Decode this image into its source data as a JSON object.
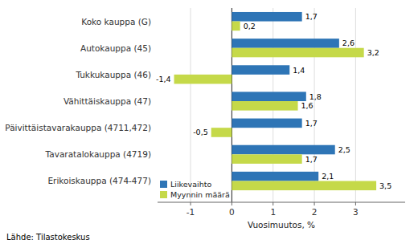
{
  "chart_data": {
    "type": "bar",
    "orientation": "horizontal",
    "categories": [
      "Erikoiskauppa (474-477)",
      "Tavaratalokauppa (4719)",
      "Päivittäistavarakauppa (4711,472)",
      "Vähittäiskauppa (47)",
      "Tukkukauppa (46)",
      "Autokauppa (45)",
      "Koko kauppa (G)"
    ],
    "series": [
      {
        "name": "Liikevaihto",
        "color": "#2E75B6",
        "values": [
          2.1,
          2.5,
          1.7,
          1.8,
          1.4,
          2.6,
          1.7
        ],
        "value_labels": [
          "2,1",
          "2,5",
          "1,7",
          "1,8",
          "1,4",
          "2,6",
          "1,7"
        ]
      },
      {
        "name": "Myynnin määrä",
        "color": "#C5D949",
        "values": [
          3.5,
          1.7,
          -0.5,
          1.6,
          -1.4,
          3.2,
          0.2
        ],
        "value_labels": [
          "3,5",
          "1,7",
          "-0,5",
          "1,6",
          "-1,4",
          "3,2",
          "0,2"
        ]
      }
    ],
    "x_label": "Vuosimuutos, %",
    "xlim": [
      -1.8,
      4.2
    ],
    "xticks": [
      -1,
      0,
      1,
      2,
      3
    ],
    "grid": true,
    "legend": "lower left",
    "data_labels": true,
    "annotations": [
      "Lähde: Tilastokeskus"
    ]
  }
}
